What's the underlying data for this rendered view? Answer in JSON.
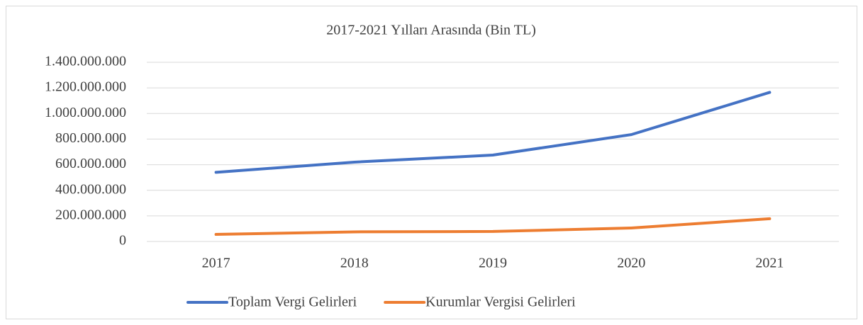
{
  "chart_data": {
    "type": "line",
    "title": "2017-2021 Yılları Arasında (Bin TL)",
    "categories": [
      "2017",
      "2018",
      "2019",
      "2020",
      "2021"
    ],
    "series": [
      {
        "name": "Toplam Vergi Gelirleri",
        "color": "#4472c4",
        "values": [
          540000000,
          620000000,
          675000000,
          835000000,
          1165000000
        ]
      },
      {
        "name": "Kurumlar Vergisi Gelirleri",
        "color": "#ed7d31",
        "values": [
          55000000,
          75000000,
          78000000,
          105000000,
          178000000
        ]
      }
    ],
    "ylim": [
      0,
      1400000000
    ],
    "yticks": [
      0,
      {
        "value": 200000000,
        "label": "200.000.000"
      },
      {
        "value": 400000000,
        "label": "400.000.000"
      },
      {
        "value": 600000000,
        "label": "600.000.000"
      },
      {
        "value": 800000000,
        "label": "800.000.000"
      },
      {
        "value": 1000000000,
        "label": "1.000.000.000"
      },
      {
        "value": 1200000000,
        "label": "1.200.000.000"
      },
      {
        "value": 1400000000,
        "label": "1.400.000.000"
      }
    ],
    "grid": true,
    "legend": "bottom"
  }
}
